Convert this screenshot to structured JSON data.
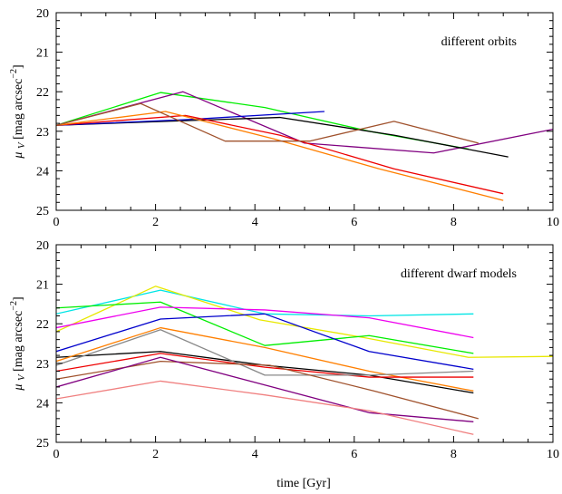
{
  "chart_data": [
    {
      "type": "line",
      "title": "",
      "annotation": "different orbits",
      "xlabel": "",
      "ylabel": "μ V [mag arcsec−2]",
      "xlim": [
        0,
        10
      ],
      "ylim": [
        25,
        20
      ],
      "xticks": [
        0,
        2,
        4,
        6,
        8,
        10
      ],
      "yticks": [
        20,
        21,
        22,
        23,
        24,
        25
      ],
      "series": [
        {
          "color": "#00ee00",
          "points": [
            [
              0,
              22.85
            ],
            [
              2.1,
              22.02
            ],
            [
              4.2,
              22.4
            ],
            [
              6.3,
              23.0
            ],
            [
              8.3,
              23.45
            ]
          ]
        },
        {
          "color": "#800080",
          "points": [
            [
              0,
              22.85
            ],
            [
              2.55,
              22.0
            ],
            [
              5.0,
              23.3
            ],
            [
              7.6,
              23.55
            ],
            [
              10,
              22.95
            ]
          ]
        },
        {
          "color": "#000000",
          "points": [
            [
              0,
              22.85
            ],
            [
              2.2,
              22.75
            ],
            [
              4.5,
              22.65
            ],
            [
              6.8,
              23.1
            ],
            [
              9.1,
              23.65
            ]
          ]
        },
        {
          "color": "#0000cc",
          "points": [
            [
              0,
              22.85
            ],
            [
              2.7,
              22.7
            ],
            [
              5.4,
              22.5
            ]
          ]
        },
        {
          "color": "#ee0000",
          "points": [
            [
              0,
              22.85
            ],
            [
              2.6,
              22.6
            ],
            [
              4.5,
              23.1
            ],
            [
              6.8,
              23.95
            ],
            [
              9.0,
              24.58
            ]
          ]
        },
        {
          "color": "#ff7f00",
          "points": [
            [
              0,
              22.85
            ],
            [
              2.2,
              22.5
            ],
            [
              4.4,
              23.2
            ],
            [
              6.5,
              23.95
            ],
            [
              9.0,
              24.75
            ]
          ]
        },
        {
          "color": "#a0522d",
          "points": [
            [
              0,
              22.85
            ],
            [
              1.7,
              22.3
            ],
            [
              3.4,
              23.25
            ],
            [
              5.1,
              23.25
            ],
            [
              6.8,
              22.75
            ],
            [
              8.5,
              23.3
            ]
          ]
        }
      ]
    },
    {
      "type": "line",
      "title": "",
      "annotation": "different dwarf models",
      "xlabel": "time [Gyr]",
      "ylabel": "μ V [mag arcsec−2]",
      "xlim": [
        0,
        10
      ],
      "ylim": [
        25,
        20
      ],
      "xticks": [
        0,
        2,
        4,
        6,
        8,
        10
      ],
      "yticks": [
        20,
        21,
        22,
        23,
        24,
        25
      ],
      "series": [
        {
          "color": "#00e5e5",
          "points": [
            [
              0,
              21.75
            ],
            [
              2.1,
              21.15
            ],
            [
              4.2,
              21.75
            ],
            [
              6.3,
              21.8
            ],
            [
              8.4,
              21.75
            ]
          ]
        },
        {
          "color": "#e8e800",
          "points": [
            [
              0,
              22.2
            ],
            [
              2.0,
              21.05
            ],
            [
              4.1,
              21.9
            ],
            [
              6.2,
              22.35
            ],
            [
              8.3,
              22.85
            ],
            [
              10.4,
              22.82
            ]
          ]
        },
        {
          "color": "#00ee00",
          "points": [
            [
              0,
              21.6
            ],
            [
              2.1,
              21.45
            ],
            [
              4.2,
              22.55
            ],
            [
              6.3,
              22.3
            ],
            [
              8.4,
              22.75
            ]
          ]
        },
        {
          "color": "#ee00ee",
          "points": [
            [
              0,
              22.1
            ],
            [
              2.1,
              21.58
            ],
            [
              4.2,
              21.65
            ],
            [
              6.3,
              21.85
            ],
            [
              8.4,
              22.35
            ]
          ]
        },
        {
          "color": "#0000cc",
          "points": [
            [
              0,
              22.7
            ],
            [
              2.1,
              21.88
            ],
            [
              4.2,
              21.75
            ],
            [
              6.3,
              22.7
            ],
            [
              8.4,
              23.15
            ]
          ]
        },
        {
          "color": "#000000",
          "points": [
            [
              0,
              22.85
            ],
            [
              2.1,
              22.7
            ],
            [
              4.2,
              23.05
            ],
            [
              6.3,
              23.3
            ],
            [
              8.4,
              23.75
            ]
          ]
        },
        {
          "color": "#ff7f00",
          "points": [
            [
              0,
              22.95
            ],
            [
              2.1,
              22.1
            ],
            [
              4.2,
              22.6
            ],
            [
              6.3,
              23.2
            ],
            [
              8.4,
              23.7
            ]
          ]
        },
        {
          "color": "#ee0000",
          "points": [
            [
              0,
              23.2
            ],
            [
              2.1,
              22.75
            ],
            [
              4.2,
              23.1
            ],
            [
              6.3,
              23.35
            ],
            [
              8.4,
              23.35
            ]
          ]
        },
        {
          "color": "#888888",
          "points": [
            [
              0,
              23.05
            ],
            [
              2.1,
              22.15
            ],
            [
              4.2,
              23.3
            ],
            [
              6.3,
              23.3
            ],
            [
              8.4,
              23.2
            ]
          ]
        },
        {
          "color": "#a0522d",
          "points": [
            [
              0,
              23.4
            ],
            [
              2.1,
              22.95
            ],
            [
              4.3,
              23.05
            ],
            [
              6.4,
              23.7
            ],
            [
              8.5,
              24.4
            ]
          ]
        },
        {
          "color": "#800080",
          "points": [
            [
              0,
              23.6
            ],
            [
              2.1,
              22.85
            ],
            [
              4.2,
              23.55
            ],
            [
              6.3,
              24.25
            ],
            [
              8.4,
              24.48
            ]
          ]
        },
        {
          "color": "#f08080",
          "points": [
            [
              0,
              23.9
            ],
            [
              2.1,
              23.45
            ],
            [
              4.2,
              23.8
            ],
            [
              6.3,
              24.2
            ],
            [
              8.4,
              24.8
            ]
          ]
        }
      ]
    }
  ]
}
